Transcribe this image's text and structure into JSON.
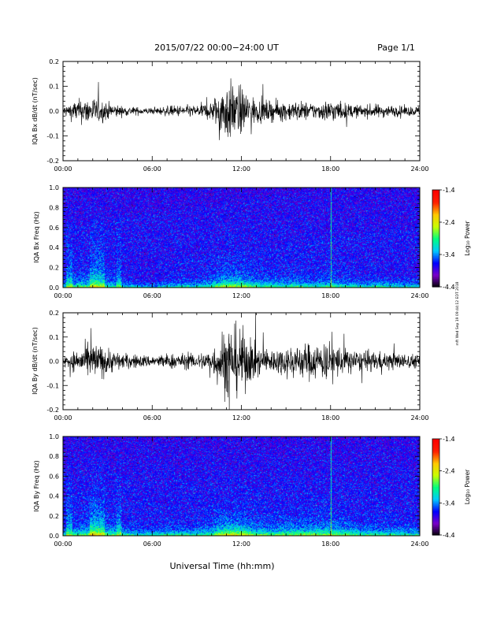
{
  "header": {
    "title": "2015/07/22  00:00−24:00 UT",
    "page": "Page 1/1"
  },
  "footer": {
    "xlabel": "Universal Time (hh:mm)",
    "stamp": "mft Wed Sep 19 09:44:12 EDT 2018"
  },
  "colorbar": {
    "label": "Log₁₀ Power",
    "ticks": [
      "-1.4",
      "-2.4",
      "-3.4",
      "-4.4"
    ],
    "range": [
      -4.4,
      -1.4
    ],
    "colors": [
      "#000000",
      "#7a00c8",
      "#0000ff",
      "#00c8ff",
      "#00ff80",
      "#c8ff00",
      "#ffc800",
      "#ff2000",
      "#ff0000"
    ]
  },
  "chart_data": [
    {
      "type": "line",
      "ylabel": "IQA Bx dB/dt (nT/sec)",
      "xlim": [
        0,
        24
      ],
      "ylim": [
        -0.2,
        0.2
      ],
      "xticks": [
        "00:00",
        "06:00",
        "12:00",
        "18:00",
        "24:00"
      ],
      "yticks": [
        "0.2",
        "0.1",
        "0.0",
        "-0.1",
        "-0.2"
      ],
      "envelope_x": [
        0,
        1,
        2,
        3,
        4,
        5,
        6,
        7,
        8,
        9,
        10,
        11,
        12,
        13,
        14,
        15,
        16,
        17,
        18,
        19,
        20,
        21,
        22,
        23,
        24
      ],
      "envelope_amp": [
        0.025,
        0.06,
        0.07,
        0.045,
        0.025,
        0.02,
        0.015,
        0.025,
        0.03,
        0.03,
        0.05,
        0.16,
        0.12,
        0.06,
        0.05,
        0.05,
        0.05,
        0.04,
        0.06,
        0.04,
        0.03,
        0.035,
        0.03,
        0.025,
        0.025
      ]
    },
    {
      "type": "heatmap",
      "ylabel": "IQA Bx Freq (Hz)",
      "xlim": [
        0,
        24
      ],
      "ylim": [
        0,
        1.0
      ],
      "xticks": [
        "00:00",
        "06:00",
        "12:00",
        "18:00",
        "24:00"
      ],
      "yticks": [
        "1.0",
        "0.8",
        "0.6",
        "0.4",
        "0.2",
        "0.0"
      ],
      "zlabel": "Log₁₀ Power",
      "zlim": [
        -4.4,
        -1.4
      ]
    },
    {
      "type": "line",
      "ylabel": "IQA By dB/dt (nT/sec)",
      "xlim": [
        0,
        24
      ],
      "ylim": [
        -0.2,
        0.2
      ],
      "xticks": [
        "00:00",
        "06:00",
        "12:00",
        "18:00",
        "24:00"
      ],
      "yticks": [
        "0.2",
        "0.1",
        "0.0",
        "-0.1",
        "-0.2"
      ],
      "envelope_x": [
        0,
        1,
        2,
        3,
        4,
        5,
        6,
        7,
        8,
        9,
        10,
        11,
        12,
        13,
        14,
        15,
        16,
        17,
        18,
        19,
        20,
        21,
        22,
        23,
        24
      ],
      "envelope_amp": [
        0.03,
        0.06,
        0.1,
        0.07,
        0.04,
        0.035,
        0.03,
        0.04,
        0.04,
        0.04,
        0.06,
        0.2,
        0.17,
        0.08,
        0.06,
        0.08,
        0.09,
        0.1,
        0.1,
        0.07,
        0.05,
        0.05,
        0.045,
        0.04,
        0.035
      ]
    },
    {
      "type": "heatmap",
      "ylabel": "IQA By Freq (Hz)",
      "xlim": [
        0,
        24
      ],
      "ylim": [
        0,
        1.0
      ],
      "xticks": [
        "00:00",
        "06:00",
        "12:00",
        "18:00",
        "24:00"
      ],
      "yticks": [
        "1.0",
        "0.8",
        "0.6",
        "0.4",
        "0.2",
        "0.0"
      ],
      "zlabel": "Log₁₀ Power",
      "zlim": [
        -4.4,
        -1.4
      ]
    }
  ]
}
